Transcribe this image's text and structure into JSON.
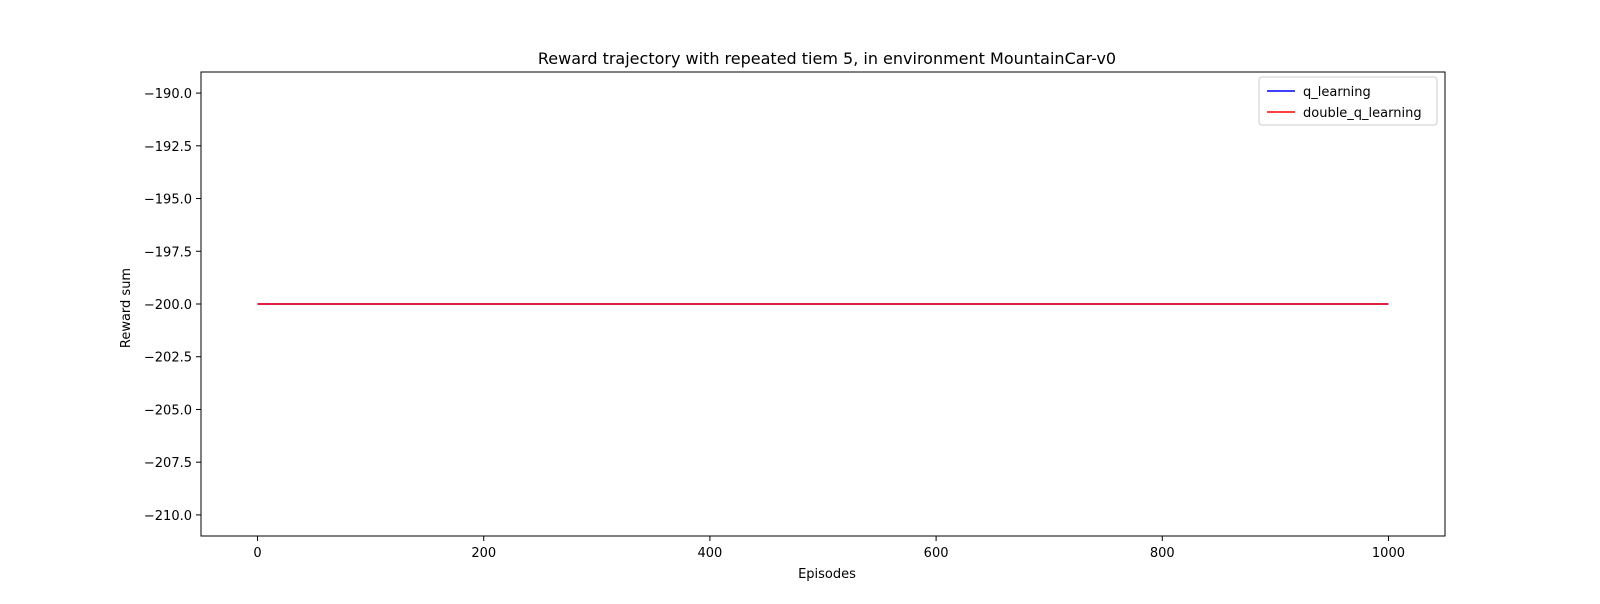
{
  "chart_data": {
    "type": "line",
    "title": "Reward trajectory with repeated tiem 5, in environment MountainCar-v0",
    "xlabel": "Episodes",
    "ylabel": "Reward sum",
    "xlim": [
      -50,
      1050
    ],
    "ylim": [
      -211.0,
      -189.0
    ],
    "xticks": [
      0,
      200,
      400,
      600,
      800,
      1000
    ],
    "xtick_labels": [
      "0",
      "200",
      "400",
      "600",
      "800",
      "1000"
    ],
    "yticks": [
      -190.0,
      -192.5,
      -195.0,
      -197.5,
      -200.0,
      -202.5,
      -205.0,
      -207.5,
      -210.0
    ],
    "ytick_labels": [
      "−190.0",
      "−192.5",
      "−195.0",
      "−197.5",
      "−200.0",
      "−202.5",
      "−205.0",
      "−207.5",
      "−210.0"
    ],
    "grid": false,
    "legend_position": "top-right",
    "series": [
      {
        "name": "q_learning",
        "color": "#0000ff",
        "x": [
          0,
          1000
        ],
        "y": [
          -200.0,
          -200.0
        ]
      },
      {
        "name": "double_q_learning",
        "color": "#ff0000",
        "x": [
          0,
          1000
        ],
        "y": [
          -200.0,
          -200.0
        ]
      }
    ]
  }
}
